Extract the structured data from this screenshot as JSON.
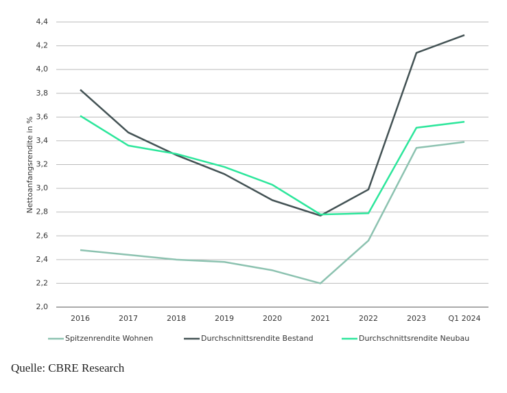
{
  "chart_data": {
    "type": "line",
    "y_label": "Nettoanfangsrendite in %",
    "categories": [
      "2016",
      "2017",
      "2018",
      "2019",
      "2020",
      "2021",
      "2022",
      "2023",
      "Q1 2024"
    ],
    "series": [
      {
        "name": "Spitzenrendite Wohnen",
        "color": "#8cc2b0",
        "values": [
          2.48,
          2.44,
          2.4,
          2.38,
          2.31,
          2.2,
          2.56,
          3.34,
          3.39
        ]
      },
      {
        "name": "Durchschnittsrendite Bestand",
        "color": "#435254",
        "values": [
          3.83,
          3.47,
          3.28,
          3.12,
          2.9,
          2.77,
          2.99,
          4.14,
          4.29
        ]
      },
      {
        "name": "Durchschnittsrendite Neubau",
        "color": "#2ce69b",
        "values": [
          3.61,
          3.36,
          3.29,
          3.18,
          3.03,
          2.78,
          2.79,
          3.51,
          3.56
        ]
      }
    ],
    "ylim": [
      2.0,
      4.4
    ],
    "yticks": [
      {
        "value": 2.0,
        "label": "2,0"
      },
      {
        "value": 2.2,
        "label": "2,2"
      },
      {
        "value": 2.4,
        "label": "2,4"
      },
      {
        "value": 2.6,
        "label": "2,6"
      },
      {
        "value": 2.8,
        "label": "2,8"
      },
      {
        "value": 3.0,
        "label": "3,0"
      },
      {
        "value": 3.2,
        "label": "3,2"
      },
      {
        "value": 3.4,
        "label": "3,4"
      },
      {
        "value": 3.6,
        "label": "3,6"
      },
      {
        "value": 3.8,
        "label": "3,8"
      },
      {
        "value": 4.0,
        "label": "4,0"
      },
      {
        "value": 4.2,
        "label": "4,2"
      },
      {
        "value": 4.4,
        "label": "4,4"
      }
    ],
    "grid": true,
    "legend": "bottom"
  },
  "source": "Quelle: CBRE Research"
}
